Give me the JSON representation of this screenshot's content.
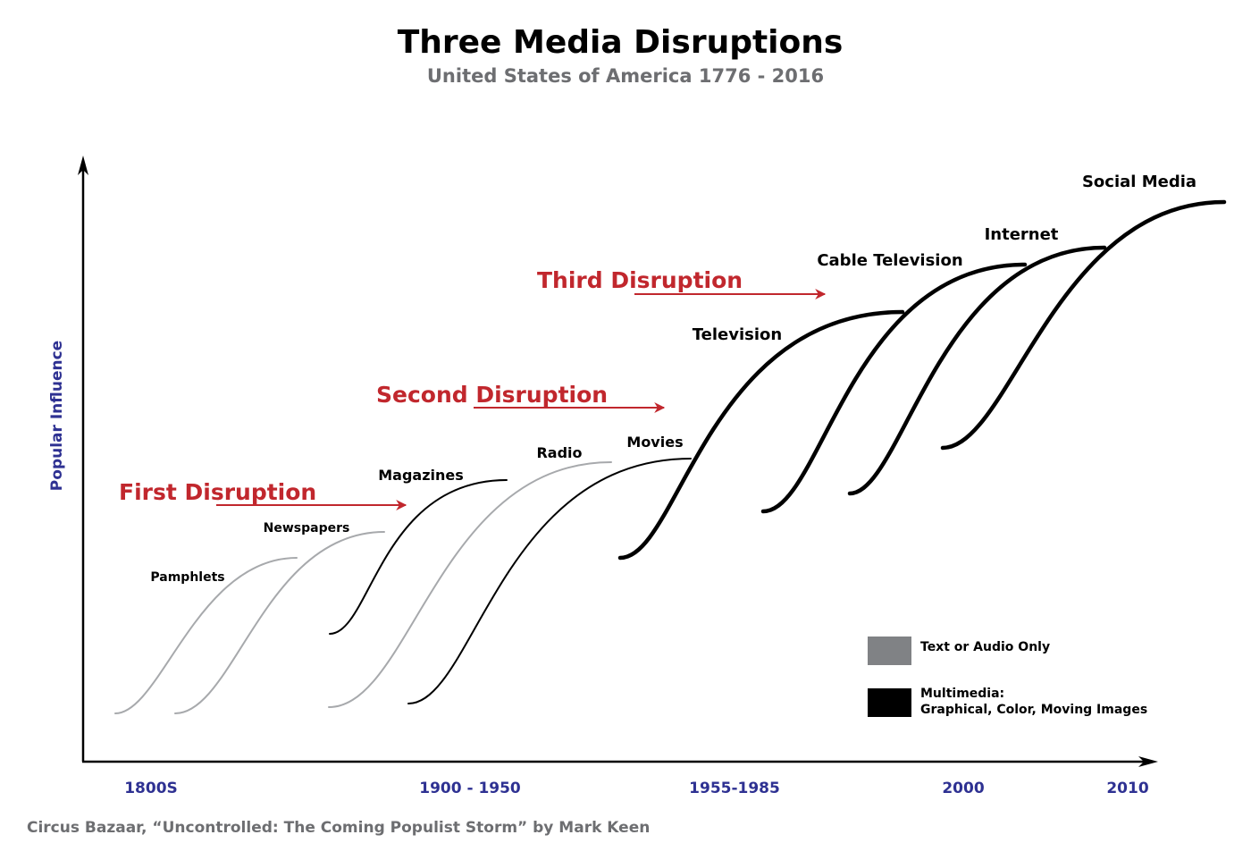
{
  "title": "Three Media Disruptions",
  "subtitle": "United States of America 1776 - 2016",
  "y_axis_label": "Popular Influence",
  "x_axis_labels": [
    "1800S",
    "1900 - 1950",
    "1955-1985",
    "2000",
    "2010"
  ],
  "media": [
    {
      "label": "Pamphlets",
      "kind": "text-or-audio"
    },
    {
      "label": "Newspapers",
      "kind": "text-or-audio"
    },
    {
      "label": "Magazines",
      "kind": "multimedia"
    },
    {
      "label": "Radio",
      "kind": "text-or-audio"
    },
    {
      "label": "Movies",
      "kind": "multimedia"
    },
    {
      "label": "Television",
      "kind": "multimedia"
    },
    {
      "label": "Cable Television",
      "kind": "multimedia"
    },
    {
      "label": "Internet",
      "kind": "multimedia"
    },
    {
      "label": "Social Media",
      "kind": "multimedia"
    }
  ],
  "disruptions": [
    {
      "label": "First Disruption"
    },
    {
      "label": "Second Disruption"
    },
    {
      "label": "Third Disruption"
    }
  ],
  "legend": {
    "text_audio": "Text or Audio Only",
    "multimedia_line1": "Multimedia:",
    "multimedia_line2": "Graphical, Color, Moving Images"
  },
  "source": "Circus Bazaar, “Uncontrolled: The Coming Populist Storm” by Mark Keen",
  "colors": {
    "title": "#000000",
    "subtitle": "#6d6e71",
    "axis_label": "#2e3192",
    "disruption": "#c1272d",
    "text_audio_curve": "#a7a9ac",
    "multimedia_curve": "#000000",
    "legend_gray": "#808285",
    "source": "#6d6e71"
  }
}
